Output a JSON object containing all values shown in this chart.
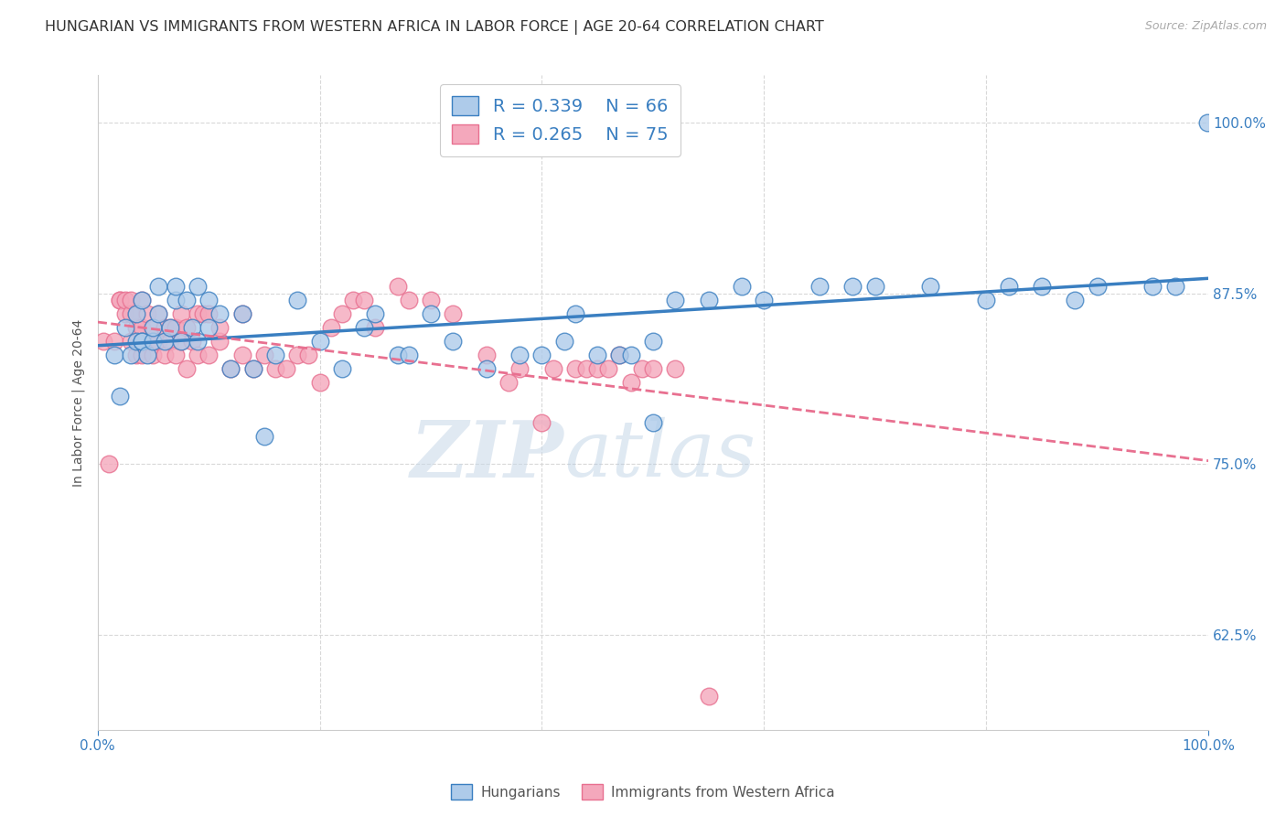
{
  "title": "HUNGARIAN VS IMMIGRANTS FROM WESTERN AFRICA IN LABOR FORCE | AGE 20-64 CORRELATION CHART",
  "source": "Source: ZipAtlas.com",
  "ylabel": "In Labor Force | Age 20-64",
  "r_hungarian": 0.339,
  "n_hungarian": 66,
  "r_western_africa": 0.265,
  "n_western_africa": 75,
  "color_hungarian": "#aecbea",
  "color_western_africa": "#f4a8bc",
  "trendline_blue": "#3a7fc1",
  "trendline_pink": "#e87090",
  "watermark_zip": "ZIP",
  "watermark_atlas": "atlas",
  "xlim": [
    0,
    1
  ],
  "ylim": [
    0.555,
    1.035
  ],
  "yticks": [
    0.625,
    0.75,
    0.875,
    1.0
  ],
  "ytick_labels": [
    "62.5%",
    "75.0%",
    "87.5%",
    "100.0%"
  ],
  "xtick_labels": [
    "0.0%",
    "100.0%"
  ],
  "background_color": "#ffffff",
  "grid_color": "#d8d8d8",
  "axis_color": "#3a7fc1",
  "title_color": "#333333",
  "title_fontsize": 11.5,
  "label_fontsize": 10,
  "tick_fontsize": 11,
  "legend_fontsize": 14,
  "hungarian_x": [
    0.015,
    0.02,
    0.025,
    0.03,
    0.035,
    0.035,
    0.04,
    0.04,
    0.04,
    0.045,
    0.05,
    0.05,
    0.055,
    0.055,
    0.06,
    0.065,
    0.07,
    0.07,
    0.075,
    0.08,
    0.085,
    0.09,
    0.09,
    0.1,
    0.1,
    0.11,
    0.12,
    0.13,
    0.14,
    0.15,
    0.16,
    0.18,
    0.2,
    0.22,
    0.24,
    0.25,
    0.27,
    0.28,
    0.3,
    0.32,
    0.35,
    0.38,
    0.4,
    0.42,
    0.43,
    0.45,
    0.47,
    0.48,
    0.5,
    0.5,
    0.52,
    0.55,
    0.58,
    0.6,
    0.65,
    0.68,
    0.7,
    0.75,
    0.8,
    0.82,
    0.85,
    0.88,
    0.9,
    0.95,
    0.97,
    0.999
  ],
  "hungarian_y": [
    0.83,
    0.8,
    0.85,
    0.83,
    0.84,
    0.86,
    0.84,
    0.84,
    0.87,
    0.83,
    0.84,
    0.85,
    0.86,
    0.88,
    0.84,
    0.85,
    0.87,
    0.88,
    0.84,
    0.87,
    0.85,
    0.88,
    0.84,
    0.85,
    0.87,
    0.86,
    0.82,
    0.86,
    0.82,
    0.77,
    0.83,
    0.87,
    0.84,
    0.82,
    0.85,
    0.86,
    0.83,
    0.83,
    0.86,
    0.84,
    0.82,
    0.83,
    0.83,
    0.84,
    0.86,
    0.83,
    0.83,
    0.83,
    0.84,
    0.78,
    0.87,
    0.87,
    0.88,
    0.87,
    0.88,
    0.88,
    0.88,
    0.88,
    0.87,
    0.88,
    0.88,
    0.87,
    0.88,
    0.88,
    0.88,
    1.0
  ],
  "western_africa_x": [
    0.005,
    0.01,
    0.015,
    0.02,
    0.02,
    0.025,
    0.025,
    0.03,
    0.03,
    0.03,
    0.035,
    0.035,
    0.035,
    0.04,
    0.04,
    0.04,
    0.045,
    0.045,
    0.05,
    0.05,
    0.05,
    0.055,
    0.055,
    0.06,
    0.06,
    0.065,
    0.065,
    0.07,
    0.07,
    0.075,
    0.075,
    0.08,
    0.08,
    0.085,
    0.09,
    0.09,
    0.095,
    0.1,
    0.1,
    0.11,
    0.11,
    0.12,
    0.13,
    0.13,
    0.14,
    0.15,
    0.16,
    0.17,
    0.18,
    0.19,
    0.2,
    0.21,
    0.22,
    0.23,
    0.24,
    0.25,
    0.27,
    0.28,
    0.3,
    0.32,
    0.35,
    0.37,
    0.38,
    0.4,
    0.41,
    0.43,
    0.44,
    0.45,
    0.46,
    0.47,
    0.48,
    0.49,
    0.5,
    0.52,
    0.55
  ],
  "western_africa_y": [
    0.84,
    0.75,
    0.84,
    0.87,
    0.87,
    0.86,
    0.87,
    0.84,
    0.86,
    0.87,
    0.83,
    0.85,
    0.86,
    0.83,
    0.85,
    0.87,
    0.84,
    0.86,
    0.83,
    0.84,
    0.85,
    0.84,
    0.86,
    0.83,
    0.85,
    0.84,
    0.85,
    0.83,
    0.85,
    0.84,
    0.86,
    0.82,
    0.85,
    0.84,
    0.83,
    0.86,
    0.86,
    0.83,
    0.86,
    0.84,
    0.85,
    0.82,
    0.83,
    0.86,
    0.82,
    0.83,
    0.82,
    0.82,
    0.83,
    0.83,
    0.81,
    0.85,
    0.86,
    0.87,
    0.87,
    0.85,
    0.88,
    0.87,
    0.87,
    0.86,
    0.83,
    0.81,
    0.82,
    0.78,
    0.82,
    0.82,
    0.82,
    0.82,
    0.82,
    0.83,
    0.81,
    0.82,
    0.82,
    0.82,
    0.58
  ]
}
